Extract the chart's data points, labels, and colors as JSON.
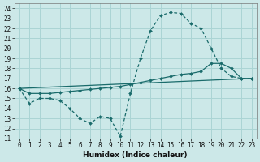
{
  "xlabel": "Humidex (Indice chaleur)",
  "bg_color": "#cce8e8",
  "line_color": "#1a6b6b",
  "grid_color": "#aad4d4",
  "xlim": [
    -0.5,
    23.5
  ],
  "ylim": [
    11,
    24.5
  ],
  "xticks": [
    0,
    1,
    2,
    3,
    4,
    5,
    6,
    7,
    8,
    9,
    10,
    11,
    12,
    13,
    14,
    15,
    16,
    17,
    18,
    19,
    20,
    21,
    22,
    23
  ],
  "yticks": [
    11,
    12,
    13,
    14,
    15,
    16,
    17,
    18,
    19,
    20,
    21,
    22,
    23,
    24
  ],
  "line1_x": [
    0,
    1,
    2,
    3,
    4,
    5,
    6,
    7,
    8,
    9,
    10,
    11,
    12,
    13,
    14,
    15,
    16,
    17,
    18,
    19,
    20,
    21,
    22,
    23
  ],
  "line1_y": [
    16.0,
    14.5,
    15.0,
    15.0,
    14.8,
    14.0,
    13.0,
    12.5,
    13.2,
    13.0,
    11.2,
    15.5,
    19.0,
    21.8,
    23.3,
    23.6,
    23.5,
    22.5,
    22.0,
    20.0,
    18.0,
    17.2,
    17.0,
    17.0
  ],
  "line2_x": [
    0,
    1,
    2,
    3,
    4,
    5,
    6,
    7,
    8,
    9,
    10,
    11,
    12,
    13,
    14,
    15,
    16,
    17,
    18,
    19,
    20,
    21,
    22,
    23
  ],
  "line2_y": [
    16.0,
    15.5,
    15.5,
    15.5,
    15.6,
    15.7,
    15.8,
    15.9,
    16.0,
    16.1,
    16.2,
    16.4,
    16.6,
    16.8,
    17.0,
    17.2,
    17.4,
    17.5,
    17.7,
    18.5,
    18.5,
    18.0,
    17.0,
    17.0
  ],
  "line3_x": [
    0,
    23
  ],
  "line3_y": [
    16.0,
    17.0
  ],
  "tick_fontsize": 5.5,
  "xlabel_fontsize": 6.5
}
